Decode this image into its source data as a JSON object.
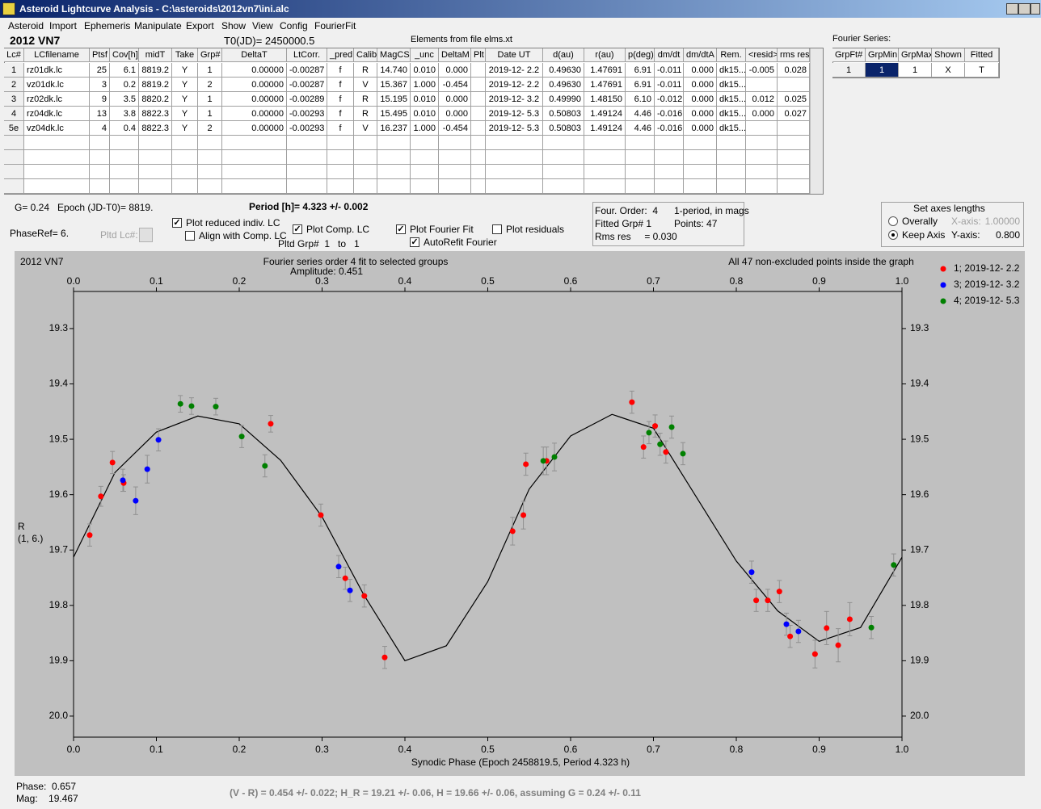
{
  "window": {
    "title": "Asteroid Lightcurve Analysis - C:\\asteroids\\2012vn7\\ini.alc",
    "menu": [
      "Asteroid",
      "Import",
      "Ephemeris",
      "Manipulate",
      "Export",
      "Show",
      "View",
      "Config",
      "FourierFit"
    ]
  },
  "header": {
    "object": "2012 VN7",
    "t0": "T0(JD)= 2450000.5",
    "elements": "Elements from file elms.xt",
    "fourier_label": "Fourier Series:"
  },
  "table": {
    "columns": [
      "Lc#",
      "LCfilename",
      "Ptsf",
      "Cov[h]",
      "midT",
      "Take",
      "Grp#",
      "DeltaT",
      "LtCorr.",
      "_pred.",
      "Calib.",
      "MagCS",
      "_unc",
      "DeltaM",
      "Plt",
      "Date UT",
      "d(au)",
      "r(au)",
      "p(deg)",
      "dm/dt",
      "dm/dtA",
      "Rem.",
      "<resid>",
      "rms res"
    ],
    "rows": [
      [
        "1",
        "rz01dk.lc",
        "25",
        "6.1",
        "8819.2",
        "Y",
        "1",
        "0.00000",
        "-0.00287",
        "f",
        "R",
        "14.740",
        "0.010",
        "0.000",
        null,
        "2019-12- 2.2",
        "0.49630",
        "1.47691",
        "6.91",
        "-0.011",
        "0.000",
        "dk15...",
        "-0.005",
        "0.028"
      ],
      [
        "2",
        "vz01dk.lc",
        "3",
        "0.2",
        "8819.2",
        "Y",
        "2",
        "0.00000",
        "-0.00287",
        "f",
        "V",
        "15.367",
        "1.000",
        "-0.454",
        null,
        "2019-12- 2.2",
        "0.49630",
        "1.47691",
        "6.91",
        "-0.011",
        "0.000",
        "dk15...",
        null,
        null
      ],
      [
        "3",
        "rz02dk.lc",
        "9",
        "3.5",
        "8820.2",
        "Y",
        "1",
        "0.00000",
        "-0.00289",
        "f",
        "R",
        "15.195",
        "0.010",
        "0.000",
        null,
        "2019-12- 3.2",
        "0.49990",
        "1.48150",
        "6.10",
        "-0.012",
        "0.000",
        "dk15...",
        "0.012",
        "0.025"
      ],
      [
        "4",
        "rz04dk.lc",
        "13",
        "3.8",
        "8822.3",
        "Y",
        "1",
        "0.00000",
        "-0.00293",
        "f",
        "R",
        "15.495",
        "0.010",
        "0.000",
        null,
        "2019-12- 5.3",
        "0.50803",
        "1.49124",
        "4.46",
        "-0.016",
        "0.000",
        "dk15...",
        "0.000",
        "0.027"
      ],
      [
        "5e",
        "vz04dk.lc",
        "4",
        "0.4",
        "8822.3",
        "Y",
        "2",
        "0.00000",
        "-0.00293",
        "f",
        "V",
        "16.237",
        "1.000",
        "-0.454",
        null,
        "2019-12- 5.3",
        "0.50803",
        "1.49124",
        "4.46",
        "-0.016",
        "0.000",
        "dk15...",
        null,
        null
      ]
    ]
  },
  "fourier_table": {
    "columns": [
      "GrpFt#",
      "GrpMin",
      "GrpMax",
      "Shown",
      "Fitted"
    ],
    "rows": [
      [
        "1",
        "1",
        "1",
        "X",
        "T"
      ]
    ]
  },
  "controls": {
    "g_epoch": "G= 0.24   Epoch (JD-T0)= 8819.",
    "period": "Period [h]= 4.323 +/- 0.002",
    "phase_ref": "PhaseRef= 6.",
    "pltd_lc": "Pltd Lc#:",
    "pltd_grp": "Pltd Grp#  1   to   1",
    "checkboxes": [
      {
        "label": "Plot reduced indiv. LC",
        "checked": true
      },
      {
        "label": "Align with Comp. LC",
        "checked": false
      },
      {
        "label": "Plot Comp. LC",
        "checked": true
      },
      {
        "label": "Plot Fourier Fit",
        "checked": true
      },
      {
        "label": "AutoRefit Fourier",
        "checked": true
      },
      {
        "label": "Plot residuals",
        "checked": false
      }
    ],
    "fit_info": [
      "Four. Order:  4",
      "1-period, in mags",
      "Fitted Grp# 1",
      "Points: 47",
      "Rms res     = 0.030"
    ],
    "axes": {
      "title": "Set axes lengths",
      "options": [
        {
          "label": "Overally",
          "selected": false,
          "axis": "X-axis:",
          "value": "1.00000",
          "enabled": false
        },
        {
          "label": "Keep Axis",
          "selected": true,
          "axis": "Y-axis:",
          "value": "0.800",
          "enabled": true
        }
      ]
    }
  },
  "chart_data": {
    "type": "scatter",
    "name": "2012 VN7",
    "title": "Fourier series order 4 fit to selected groups",
    "subtitle": "Amplitude: 0.451",
    "note": "All 47 non-excluded points inside the graph",
    "y_label": [
      "R",
      "(1, 6.)"
    ],
    "x_label": "Synodic Phase (Epoch 2458819.5, Period 4.323 h)",
    "xlim": [
      0,
      1
    ],
    "ylim": [
      20.038,
      19.233
    ],
    "xticks": [
      {
        "value": 0,
        "label": "0.0"
      },
      0.1,
      0.2,
      0.3,
      0.4,
      0.5,
      0.6,
      0.7,
      0.8,
      0.9,
      {
        "value": 1,
        "label": "1.0"
      }
    ],
    "yticks": [
      19.3,
      19.4,
      19.5,
      19.6,
      19.7,
      19.8,
      19.9,
      {
        "value": 20,
        "label": "20.0"
      }
    ],
    "legend": "top-right",
    "series": [
      {
        "name": "1; 2019-12- 2.2",
        "color": "#ff0000",
        "x": [
          0.0195,
          0.033,
          0.047,
          0.0605,
          0.238,
          0.2985,
          0.328,
          0.351,
          0.3756,
          0.53,
          0.543,
          0.546,
          0.571,
          0.674,
          0.688,
          0.702,
          0.715,
          0.824,
          0.838,
          0.852,
          0.865,
          0.895,
          0.909,
          0.923,
          0.937
        ],
        "values": [
          19.673,
          19.603,
          19.542,
          19.579,
          19.472,
          19.637,
          19.751,
          19.783,
          19.894,
          19.666,
          19.637,
          19.545,
          19.539,
          19.433,
          19.514,
          19.476,
          19.523,
          19.791,
          19.791,
          19.775,
          19.856,
          19.888,
          19.841,
          19.872,
          19.825
        ],
        "errors": [
          0.02,
          0.018,
          0.02,
          0.015,
          0.015,
          0.02,
          0.02,
          0.02,
          0.02,
          0.025,
          0.025,
          0.02,
          0.025,
          0.02,
          0.02,
          0.02,
          0.02,
          0.02,
          0.02,
          0.02,
          0.02,
          0.025,
          0.03,
          0.03,
          0.03
        ]
      },
      {
        "name": "3; 2019-12- 3.2",
        "color": "#0000ff",
        "x": [
          0.0595,
          0.075,
          0.089,
          0.1025,
          0.32,
          0.3337,
          0.8185,
          0.8605,
          0.875
        ],
        "values": [
          19.574,
          19.611,
          19.554,
          19.501,
          19.73,
          19.773,
          19.74,
          19.834,
          19.847
        ],
        "errors": [
          0.02,
          0.025,
          0.025,
          0.02,
          0.02,
          0.02,
          0.02,
          0.02,
          0.02
        ]
      },
      {
        "name": "4; 2019-12- 5.3",
        "color": "#008000",
        "x": [
          0.129,
          0.1424,
          0.1717,
          0.203,
          0.231,
          0.567,
          0.5805,
          0.6946,
          0.708,
          0.722,
          0.7356,
          0.963,
          0.99
        ],
        "values": [
          19.436,
          19.44,
          19.441,
          19.495,
          19.548,
          19.539,
          19.532,
          19.488,
          19.509,
          19.478,
          19.526,
          19.84,
          19.727
        ],
        "errors": [
          0.015,
          0.015,
          0.015,
          0.02,
          0.02,
          0.025,
          0.025,
          0.02,
          0.02,
          0.02,
          0.02,
          0.02,
          0.02
        ]
      }
    ],
    "fit": {
      "color": "#000000",
      "x": [
        0,
        0.05,
        0.1,
        0.15,
        0.2,
        0.25,
        0.3,
        0.35,
        0.4,
        0.45,
        0.5,
        0.55,
        0.6,
        0.65,
        0.7,
        0.75,
        0.8,
        0.85,
        0.9,
        0.95,
        1
      ],
      "values": [
        19.713,
        19.56,
        19.487,
        19.458,
        19.472,
        19.538,
        19.64,
        19.78,
        19.9,
        19.873,
        19.757,
        19.59,
        19.494,
        19.455,
        19.48,
        19.6,
        19.72,
        19.81,
        19.865,
        19.84,
        19.713
      ]
    }
  },
  "status": {
    "phase": "Phase:  0.657",
    "mag": "Mag:    19.467",
    "result": "(V - R) = 0.454 +/- 0.022; H_R = 19.21 +/- 0.06, H = 19.66 +/- 0.06, assuming G = 0.24 +/- 0.11"
  }
}
